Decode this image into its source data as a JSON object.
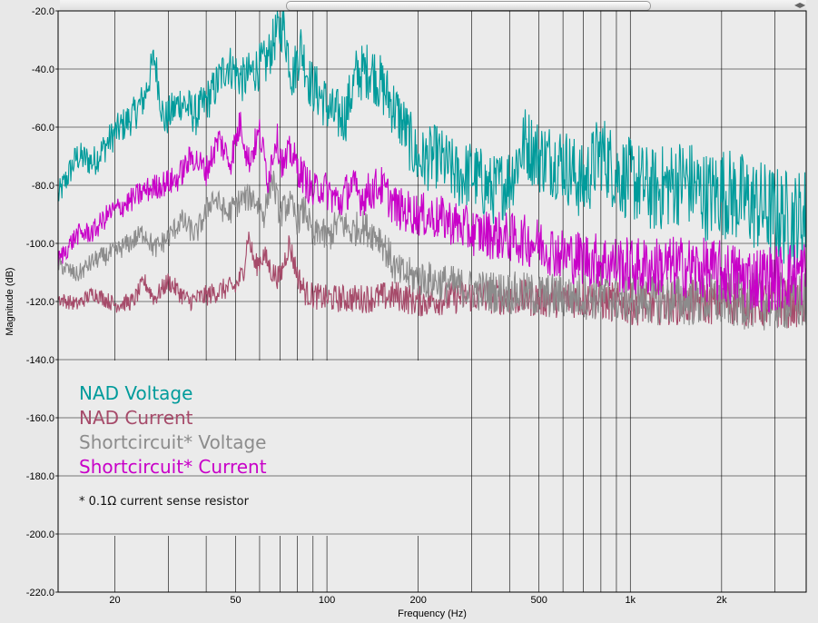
{
  "window": {
    "scroll_left_glyph": "◀",
    "scroll_right_glyph": "▶"
  },
  "chart_data": {
    "type": "line",
    "xlabel": "Frequency (Hz)",
    "ylabel": "Magnitude (dB)",
    "x_scale": "log",
    "xlim": [
      13,
      3800
    ],
    "ylim": [
      -220,
      -20
    ],
    "y_ticks": [
      "-20.0",
      "-40.0",
      "-60.0",
      "-80.0",
      "-100.0",
      "-120.0",
      "-140.0",
      "-160.0",
      "-180.0",
      "-200.0",
      "-220.0"
    ],
    "x_tick_labels": [
      {
        "value": 20,
        "label": "20"
      },
      {
        "value": 50,
        "label": "50"
      },
      {
        "value": 100,
        "label": "100"
      },
      {
        "value": 200,
        "label": "200"
      },
      {
        "value": 500,
        "label": "500"
      },
      {
        "value": 1000,
        "label": "1k"
      },
      {
        "value": 2000,
        "label": "2k"
      }
    ],
    "x_gridlines": [
      20,
      30,
      40,
      50,
      60,
      70,
      80,
      90,
      100,
      200,
      300,
      400,
      500,
      600,
      700,
      800,
      900,
      1000,
      2000,
      3000
    ],
    "grid": true,
    "legend_position": "bottom-left",
    "annotation": "* 0.1Ω current sense resistor",
    "series": [
      {
        "name": "NAD Voltage",
        "color": "#009b9b",
        "noise": 5,
        "points": [
          [
            13,
            -84
          ],
          [
            15,
            -70
          ],
          [
            17,
            -72
          ],
          [
            20,
            -62
          ],
          [
            23,
            -56
          ],
          [
            25,
            -50
          ],
          [
            27,
            -36
          ],
          [
            29,
            -58
          ],
          [
            33,
            -51
          ],
          [
            37,
            -56
          ],
          [
            42,
            -48
          ],
          [
            47,
            -38
          ],
          [
            53,
            -44
          ],
          [
            58,
            -40
          ],
          [
            63,
            -38
          ],
          [
            68,
            -28
          ],
          [
            72,
            -25
          ],
          [
            77,
            -43
          ],
          [
            82,
            -32
          ],
          [
            88,
            -45
          ],
          [
            95,
            -49
          ],
          [
            105,
            -56
          ],
          [
            115,
            -56
          ],
          [
            125,
            -42
          ],
          [
            140,
            -40
          ],
          [
            160,
            -50
          ],
          [
            180,
            -60
          ],
          [
            200,
            -72
          ],
          [
            230,
            -70
          ],
          [
            270,
            -77
          ],
          [
            300,
            -76
          ],
          [
            350,
            -82
          ],
          [
            400,
            -78
          ],
          [
            450,
            -65
          ],
          [
            500,
            -70
          ],
          [
            600,
            -72
          ],
          [
            700,
            -80
          ],
          [
            800,
            -68
          ],
          [
            900,
            -76
          ],
          [
            1000,
            -78
          ],
          [
            1200,
            -82
          ],
          [
            1500,
            -78
          ],
          [
            1800,
            -84
          ],
          [
            2000,
            -82
          ],
          [
            2500,
            -86
          ],
          [
            3000,
            -90
          ],
          [
            3500,
            -92
          ],
          [
            3800,
            -90
          ]
        ]
      },
      {
        "name": "NAD Current",
        "color": "#a64b6a",
        "noise": 2.5,
        "points": [
          [
            13,
            -119
          ],
          [
            15,
            -121
          ],
          [
            17,
            -117
          ],
          [
            20,
            -121
          ],
          [
            23,
            -120
          ],
          [
            25,
            -113
          ],
          [
            27,
            -119
          ],
          [
            30,
            -113
          ],
          [
            35,
            -120
          ],
          [
            40,
            -118
          ],
          [
            45,
            -116
          ],
          [
            50,
            -115
          ],
          [
            53,
            -110
          ],
          [
            55,
            -97
          ],
          [
            58,
            -108
          ],
          [
            62,
            -104
          ],
          [
            66,
            -110
          ],
          [
            70,
            -112
          ],
          [
            75,
            -100
          ],
          [
            80,
            -111
          ],
          [
            85,
            -117
          ],
          [
            90,
            -118
          ],
          [
            100,
            -119
          ],
          [
            130,
            -119
          ],
          [
            170,
            -118
          ],
          [
            200,
            -120
          ],
          [
            300,
            -118
          ],
          [
            500,
            -119
          ],
          [
            700,
            -119
          ],
          [
            1000,
            -121
          ],
          [
            2000,
            -120
          ],
          [
            3000,
            -121
          ],
          [
            3800,
            -120
          ]
        ]
      },
      {
        "name": "Shortcircuit* Voltage",
        "color": "#8c8c8c",
        "noise": 3,
        "points": [
          [
            13,
            -107
          ],
          [
            15,
            -111
          ],
          [
            17,
            -106
          ],
          [
            20,
            -103
          ],
          [
            23,
            -99
          ],
          [
            25,
            -96
          ],
          [
            27,
            -102
          ],
          [
            30,
            -98
          ],
          [
            33,
            -92
          ],
          [
            37,
            -97
          ],
          [
            42,
            -84
          ],
          [
            47,
            -90
          ],
          [
            52,
            -85
          ],
          [
            57,
            -84
          ],
          [
            62,
            -90
          ],
          [
            66,
            -77
          ],
          [
            70,
            -90
          ],
          [
            75,
            -86
          ],
          [
            80,
            -92
          ],
          [
            85,
            -88
          ],
          [
            90,
            -99
          ],
          [
            95,
            -95
          ],
          [
            100,
            -99
          ],
          [
            110,
            -92
          ],
          [
            120,
            -96
          ],
          [
            130,
            -94
          ],
          [
            150,
            -98
          ],
          [
            170,
            -110
          ],
          [
            200,
            -112
          ],
          [
            250,
            -114
          ],
          [
            300,
            -116
          ],
          [
            400,
            -117
          ],
          [
            500,
            -118
          ],
          [
            700,
            -118
          ],
          [
            1000,
            -119
          ],
          [
            3000,
            -120
          ],
          [
            3800,
            -120
          ]
        ]
      },
      {
        "name": "Shortcircuit* Current",
        "color": "#c800c8",
        "noise": 3.5,
        "points": [
          [
            13,
            -106
          ],
          [
            15,
            -97
          ],
          [
            17,
            -96
          ],
          [
            19,
            -90
          ],
          [
            22,
            -86
          ],
          [
            25,
            -82
          ],
          [
            28,
            -80
          ],
          [
            32,
            -78
          ],
          [
            36,
            -70
          ],
          [
            40,
            -75
          ],
          [
            44,
            -64
          ],
          [
            48,
            -72
          ],
          [
            52,
            -58
          ],
          [
            55,
            -72
          ],
          [
            60,
            -62
          ],
          [
            64,
            -78
          ],
          [
            68,
            -63
          ],
          [
            72,
            -74
          ],
          [
            76,
            -68
          ],
          [
            80,
            -74
          ],
          [
            85,
            -78
          ],
          [
            90,
            -83
          ],
          [
            95,
            -80
          ],
          [
            100,
            -82
          ],
          [
            110,
            -86
          ],
          [
            120,
            -80
          ],
          [
            130,
            -84
          ],
          [
            150,
            -80
          ],
          [
            170,
            -88
          ],
          [
            200,
            -90
          ],
          [
            250,
            -92
          ],
          [
            300,
            -96
          ],
          [
            400,
            -98
          ],
          [
            500,
            -100
          ],
          [
            600,
            -104
          ],
          [
            800,
            -106
          ],
          [
            1000,
            -108
          ],
          [
            1500,
            -108
          ],
          [
            2000,
            -110
          ],
          [
            2500,
            -112
          ],
          [
            3000,
            -112
          ],
          [
            3800,
            -110
          ]
        ]
      }
    ]
  }
}
